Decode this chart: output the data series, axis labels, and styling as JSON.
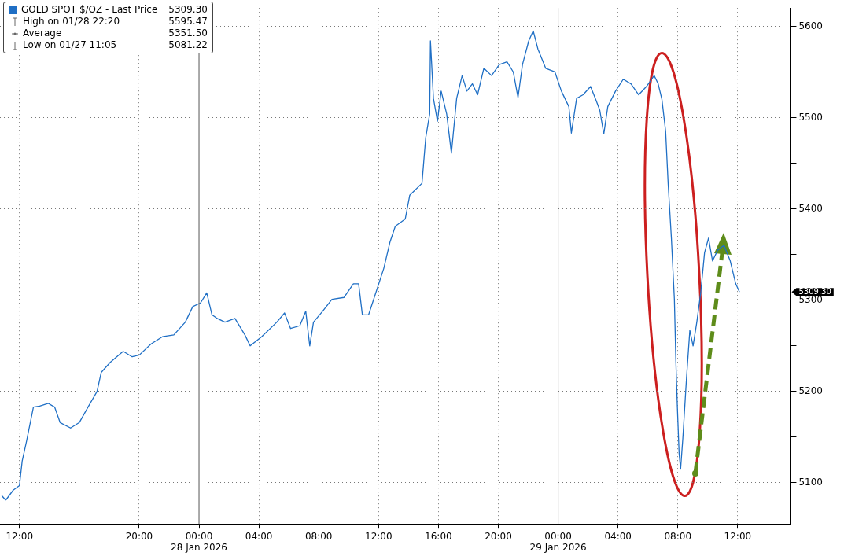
{
  "chart_data": {
    "type": "line",
    "legend": "top left",
    "grid": true,
    "marker": "none",
    "line_style": "solid",
    "x": [
      "2026-01-27T10:49",
      "2026-01-27T11:05",
      "2026-01-27T11:35",
      "2026-01-27T12:00",
      "2026-01-27T12:11",
      "2026-01-27T12:28",
      "2026-01-27T12:56",
      "2026-01-27T13:21",
      "2026-01-27T13:56",
      "2026-01-27T14:21",
      "2026-01-27T14:43",
      "2026-01-27T15:25",
      "2026-01-27T16:00",
      "2026-01-27T16:35",
      "2026-01-27T17:11",
      "2026-01-27T17:28",
      "2026-01-27T18:04",
      "2026-01-27T18:56",
      "2026-01-27T19:32",
      "2026-01-27T20:01",
      "2026-01-27T20:47",
      "2026-01-27T21:33",
      "2026-01-27T22:19",
      "2026-01-27T23:05",
      "2026-01-27T23:35",
      "2026-01-28T00:06",
      "2026-01-28T00:31",
      "2026-01-28T00:52",
      "2026-01-28T01:13",
      "2026-01-28T01:44",
      "2026-01-28T02:24",
      "2026-01-28T03:04",
      "2026-01-28T03:25",
      "2026-01-28T04:11",
      "2026-01-28T05:12",
      "2026-01-28T05:43",
      "2026-01-28T06:07",
      "2026-01-28T06:44",
      "2026-01-28T07:08",
      "2026-01-28T07:24",
      "2026-01-28T07:39",
      "2026-01-28T08:16",
      "2026-01-28T08:53",
      "2026-01-28T09:41",
      "2026-01-28T10:19",
      "2026-01-28T10:40",
      "2026-01-28T10:55",
      "2026-01-28T11:20",
      "2026-01-28T11:50",
      "2026-01-28T12:21",
      "2026-01-28T12:46",
      "2026-01-28T13:07",
      "2026-01-28T13:47",
      "2026-01-28T14:05",
      "2026-01-28T14:54",
      "2026-01-28T15:09",
      "2026-01-28T15:25",
      "2026-01-28T15:28",
      "2026-01-28T15:40",
      "2026-01-28T15:56",
      "2026-01-28T16:11",
      "2026-01-28T16:33",
      "2026-01-28T16:52",
      "2026-01-28T17:13",
      "2026-01-28T17:35",
      "2026-01-28T17:54",
      "2026-01-28T18:16",
      "2026-01-28T18:37",
      "2026-01-28T19:02",
      "2026-01-28T19:33",
      "2026-01-28T20:04",
      "2026-01-28T20:35",
      "2026-01-28T21:00",
      "2026-01-28T21:19",
      "2026-01-28T21:37",
      "2026-01-28T22:02",
      "2026-01-28T22:20",
      "2026-01-28T22:39",
      "2026-01-28T23:10",
      "2026-01-28T23:47",
      "2026-01-29T00:13",
      "2026-01-29T00:43",
      "2026-01-29T00:53",
      "2026-01-29T01:14",
      "2026-01-29T01:40",
      "2026-01-29T02:10",
      "2026-01-29T02:32",
      "2026-01-29T02:47",
      "2026-01-29T03:03",
      "2026-01-29T03:19",
      "2026-01-29T03:50",
      "2026-01-29T04:21",
      "2026-01-29T04:52",
      "2026-01-29T05:23",
      "2026-01-29T05:54",
      "2026-01-29T06:25",
      "2026-01-29T06:41",
      "2026-01-29T06:56",
      "2026-01-29T07:11",
      "2026-01-29T07:21",
      "2026-01-29T07:34",
      "2026-01-29T07:46",
      "2026-01-29T07:52",
      "2026-01-29T07:58",
      "2026-01-29T08:05",
      "2026-01-29T08:11",
      "2026-01-29T08:20",
      "2026-01-29T08:35",
      "2026-01-29T08:48",
      "2026-01-29T09:01",
      "2026-01-29T09:16",
      "2026-01-29T09:32",
      "2026-01-29T09:47",
      "2026-01-29T10:03",
      "2026-01-29T10:19",
      "2026-01-29T10:40",
      "2026-01-29T11:05",
      "2026-01-29T11:30",
      "2026-01-29T11:52",
      "2026-01-29T12:07"
    ],
    "series": [
      {
        "name": "GOLD SPOT $/OZ - Last Price",
        "color": "#1f6fc5",
        "values": [
          5086,
          5081,
          5092,
          5097,
          5124,
          5145,
          5183,
          5184,
          5187,
          5183,
          5166,
          5160,
          5166,
          5183,
          5200,
          5221,
          5232,
          5244,
          5238,
          5240,
          5252,
          5260,
          5262,
          5276,
          5293,
          5297,
          5308,
          5284,
          5280,
          5276,
          5280,
          5262,
          5250,
          5260,
          5276,
          5286,
          5269,
          5272,
          5288,
          5250,
          5276,
          5288,
          5301,
          5303,
          5318,
          5318,
          5284,
          5284,
          5309,
          5335,
          5364,
          5381,
          5389,
          5415,
          5428,
          5478,
          5504,
          5584,
          5521,
          5496,
          5529,
          5504,
          5461,
          5521,
          5546,
          5529,
          5537,
          5525,
          5554,
          5546,
          5558,
          5561,
          5550,
          5522,
          5558,
          5584,
          5595,
          5575,
          5554,
          5550,
          5529,
          5512,
          5483,
          5521,
          5525,
          5534,
          5519,
          5508,
          5482,
          5512,
          5529,
          5542,
          5537,
          5525,
          5534,
          5546,
          5537,
          5520,
          5485,
          5428,
          5368,
          5301,
          5233,
          5183,
          5132,
          5115,
          5149,
          5216,
          5267,
          5250,
          5276,
          5309,
          5352,
          5368,
          5343,
          5355,
          5360,
          5343,
          5318,
          5309
        ]
      }
    ],
    "xlim": [
      "2026-01-27T10:42",
      "2026-01-29T15:30"
    ],
    "xticks": [
      {
        "value": "2026-01-27T12:00",
        "label": "12:00"
      },
      {
        "value": "2026-01-27T20:00",
        "label": "20:00"
      },
      {
        "value": "2026-01-28T00:00",
        "label": "00:00\n28 Jan 2026"
      },
      {
        "value": "2026-01-28T04:00",
        "label": "04:00"
      },
      {
        "value": "2026-01-28T08:00",
        "label": "08:00"
      },
      {
        "value": "2026-01-28T12:00",
        "label": "12:00"
      },
      {
        "value": "2026-01-28T16:00",
        "label": "16:00"
      },
      {
        "value": "2026-01-28T20:00",
        "label": "20:00"
      },
      {
        "value": "2026-01-29T00:00",
        "label": "00:00\n29 Jan 2026"
      },
      {
        "value": "2026-01-29T04:00",
        "label": "04:00"
      },
      {
        "value": "2026-01-29T08:00",
        "label": "08:00"
      },
      {
        "value": "2026-01-29T12:00",
        "label": "12:00"
      }
    ],
    "ylim": [
      5055,
      5620
    ],
    "yticks": [
      5100,
      {
        "value": 5150,
        "label": null
      },
      5200,
      {
        "value": 5250,
        "label": null
      },
      5300,
      {
        "value": 5350,
        "label": null
      },
      5400,
      {
        "value": 5450,
        "label": null
      },
      5500,
      {
        "value": 5550,
        "label": null
      },
      5600
    ],
    "annotations": [
      "5309.30",
      "High on 01/28 22:20",
      "5595.47",
      "Average",
      "5351.50",
      "Low on 01/27 11:05",
      "5081.22"
    ]
  }
}
